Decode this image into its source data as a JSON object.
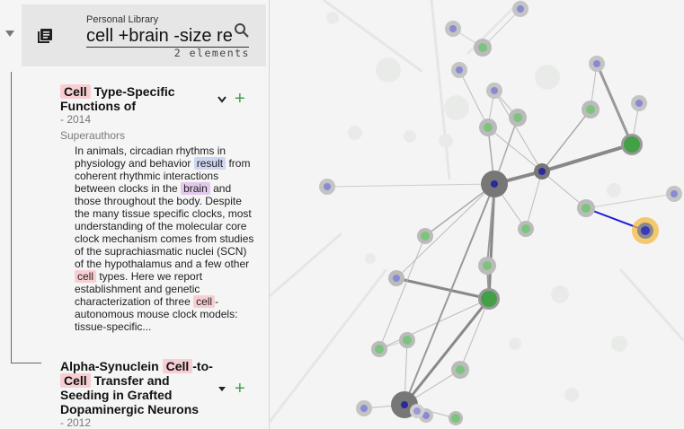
{
  "search": {
    "library_label": "Personal Library",
    "query": "cell +brain -size re",
    "result_count": "2 elements"
  },
  "results": [
    {
      "title_parts": [
        "Cell",
        " Type-Specific",
        "Functions of"
      ],
      "year": "- 2014",
      "authors": "Superauthors",
      "abstract": [
        {
          "t": "In animals, circadian rhythms in physiology and behavior "
        },
        {
          "t": "result",
          "hl": "result"
        },
        {
          "t": " from coherent rhythmic interactions between clocks in the "
        },
        {
          "t": "brain",
          "hl": "brain"
        },
        {
          "t": " and those throughout the body. Despite the many tissue specific clocks, most understanding of the molecular core clock mechanism comes from studies of the suprachiasmatic nuclei (SCN) of the hypothalamus and a few other "
        },
        {
          "t": "cell",
          "hl": "cell"
        },
        {
          "t": " types. Here we report establishment and genetic characterization of three "
        },
        {
          "t": "cell",
          "hl": "cell"
        },
        {
          "t": "-autonomous mouse clock models: tissue-specific..."
        }
      ]
    },
    {
      "title_parts": [
        "Alpha-Synuclein ",
        "Cell",
        "-to-",
        "Cell",
        " Transfer and",
        "Seeding in Grafted",
        "Dopaminergic Neurons"
      ],
      "year": "- 2012"
    }
  ],
  "colors": {
    "highlight_cell": "#f7cfd3",
    "highlight_result": "#cfd6f0",
    "highlight_brain": "#e2c9ec",
    "node_green": "#43a047",
    "node_blue": "#3a3ab8",
    "selected_glow": "#f5b942",
    "link_blue": "#1a1ad6"
  },
  "icons": [
    "collapse-triangle-icon",
    "library-icon",
    "search-icon",
    "chevron-down-icon",
    "add-icon"
  ]
}
